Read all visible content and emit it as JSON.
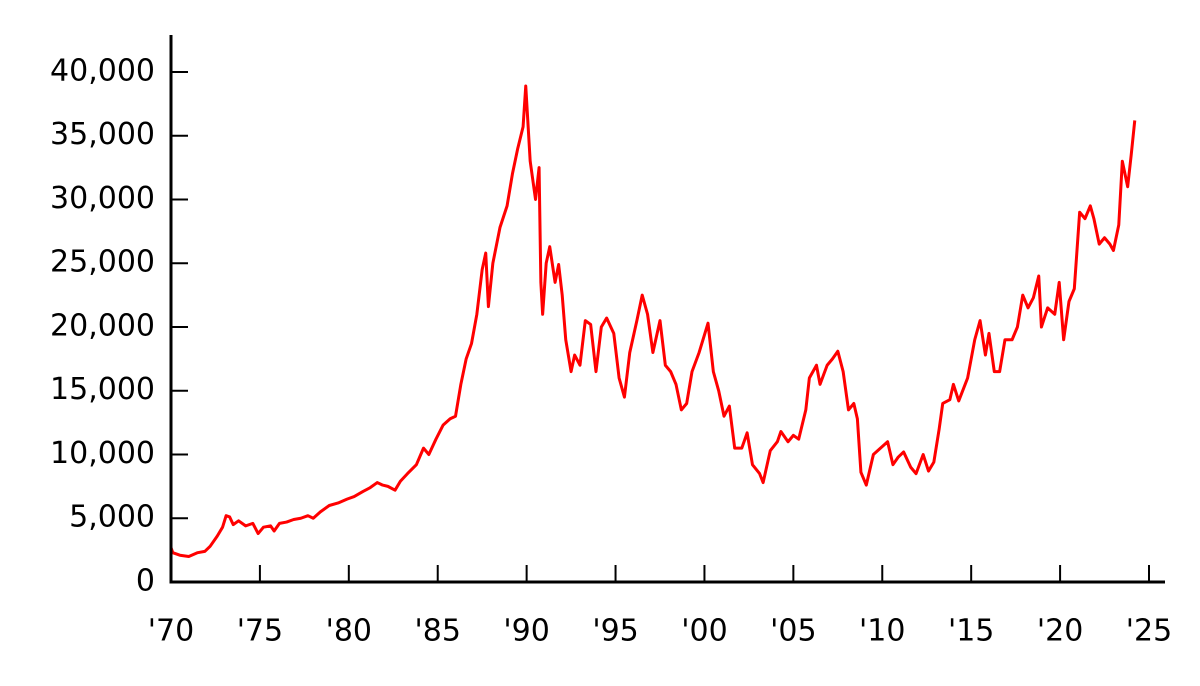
{
  "chart_data": {
    "type": "line",
    "x": [
      1970.0,
      1970.1,
      1970.5,
      1971.0,
      1971.5,
      1971.9,
      1972.2,
      1972.6,
      1972.9,
      1973.1,
      1973.3,
      1973.5,
      1973.8,
      1974.2,
      1974.6,
      1974.9,
      1975.2,
      1975.6,
      1975.8,
      1976.1,
      1976.5,
      1976.9,
      1977.3,
      1977.7,
      1978.0,
      1978.4,
      1978.9,
      1979.4,
      1979.9,
      1980.3,
      1980.8,
      1981.2,
      1981.6,
      1981.9,
      1982.2,
      1982.6,
      1982.9,
      1983.3,
      1983.8,
      1984.2,
      1984.5,
      1984.9,
      1985.3,
      1985.7,
      1986.0,
      1986.3,
      1986.6,
      1986.9,
      1987.2,
      1987.5,
      1987.7,
      1987.85,
      1988.1,
      1988.5,
      1988.9,
      1989.2,
      1989.5,
      1989.8,
      1989.95,
      1990.2,
      1990.5,
      1990.7,
      1990.8,
      1990.9,
      1991.1,
      1991.3,
      1991.6,
      1991.8,
      1992.0,
      1992.2,
      1992.5,
      1992.7,
      1993.0,
      1993.3,
      1993.6,
      1993.9,
      1994.2,
      1994.5,
      1994.9,
      1995.2,
      1995.5,
      1995.8,
      1996.2,
      1996.5,
      1996.8,
      1997.1,
      1997.5,
      1997.8,
      1998.1,
      1998.4,
      1998.7,
      1999.0,
      1999.3,
      1999.7,
      2000.2,
      2000.5,
      2000.8,
      2001.1,
      2001.4,
      2001.7,
      2002.1,
      2002.4,
      2002.7,
      2003.1,
      2003.3,
      2003.7,
      2004.1,
      2004.3,
      2004.7,
      2005.0,
      2005.3,
      2005.7,
      2005.9,
      2006.3,
      2006.5,
      2006.9,
      2007.2,
      2007.5,
      2007.8,
      2008.1,
      2008.4,
      2008.6,
      2008.8,
      2009.1,
      2009.5,
      2009.9,
      2010.3,
      2010.6,
      2010.9,
      2011.2,
      2011.6,
      2011.9,
      2012.3,
      2012.6,
      2012.9,
      2013.2,
      2013.4,
      2013.8,
      2014.0,
      2014.3,
      2014.8,
      2015.2,
      2015.5,
      2015.8,
      2016.0,
      2016.3,
      2016.6,
      2016.9,
      2017.3,
      2017.6,
      2017.9,
      2018.2,
      2018.5,
      2018.8,
      2018.95,
      2019.3,
      2019.7,
      2019.95,
      2020.2,
      2020.5,
      2020.8,
      2021.1,
      2021.4,
      2021.7,
      2021.9,
      2022.2,
      2022.5,
      2022.8,
      2023.0,
      2023.3,
      2023.5,
      2023.8,
      2024.0,
      2024.2
    ],
    "series": [
      {
        "color": "#ff0000",
        "values": [
          2700,
          2300,
          2100,
          2000,
          2300,
          2400,
          2800,
          3600,
          4300,
          5200,
          5100,
          4500,
          4800,
          4400,
          4600,
          3800,
          4300,
          4400,
          4000,
          4600,
          4700,
          4900,
          5000,
          5200,
          5000,
          5500,
          6000,
          6200,
          6500,
          6700,
          7100,
          7400,
          7800,
          7600,
          7500,
          7200,
          7900,
          8500,
          9200,
          10500,
          10000,
          11200,
          12300,
          12800,
          13000,
          15500,
          17500,
          18700,
          21000,
          24500,
          25800,
          21600,
          25000,
          27800,
          29500,
          32000,
          34000,
          35700,
          38900,
          33000,
          30000,
          32500,
          23500,
          21000,
          25000,
          26300,
          23500,
          24900,
          22500,
          19000,
          16500,
          17800,
          17000,
          20500,
          20200,
          16500,
          20000,
          20700,
          19500,
          16000,
          14500,
          18000,
          20500,
          22500,
          21000,
          18000,
          20500,
          17000,
          16500,
          15500,
          13500,
          14000,
          16500,
          18000,
          20300,
          16500,
          15000,
          13000,
          13800,
          10500,
          10500,
          11700,
          9200,
          8500,
          7800,
          10300,
          11000,
          11800,
          11000,
          11500,
          11200,
          13500,
          16000,
          17000,
          15500,
          17000,
          17500,
          18100,
          16500,
          13500,
          14000,
          12800,
          8600,
          7600,
          10000,
          10500,
          11000,
          9200,
          9800,
          10200,
          9000,
          8500,
          10000,
          8700,
          9400,
          12000,
          14000,
          14300,
          15500,
          14200,
          16000,
          19000,
          20500,
          17800,
          19500,
          16500,
          16500,
          19000,
          19000,
          20000,
          22500,
          21500,
          22300,
          24000,
          20000,
          21500,
          21000,
          23500,
          19000,
          22000,
          23000,
          29000,
          28500,
          29500,
          28500,
          26500,
          27000,
          26500,
          26000,
          28000,
          33000,
          31000,
          33500,
          36200
        ]
      }
    ],
    "xlim": [
      1970,
      2025.9
    ],
    "xticks": [
      {
        "value": 1970,
        "label": "'70"
      },
      {
        "value": 1975,
        "label": "'75"
      },
      {
        "value": 1980,
        "label": "'80"
      },
      {
        "value": 1985,
        "label": "'85"
      },
      {
        "value": 1990,
        "label": "'90"
      },
      {
        "value": 1995,
        "label": "'95"
      },
      {
        "value": 2000,
        "label": "'00"
      },
      {
        "value": 2005,
        "label": "'05"
      },
      {
        "value": 2010,
        "label": "'10"
      },
      {
        "value": 2015,
        "label": "'15"
      },
      {
        "value": 2020,
        "label": "'20"
      },
      {
        "value": 2025,
        "label": "'25"
      }
    ],
    "ylim": [
      0,
      42900
    ],
    "yticks": [
      0,
      {
        "value": 5000,
        "label": "5,000"
      },
      {
        "value": 10000,
        "label": "10,000"
      },
      {
        "value": 15000,
        "label": "15,000"
      },
      {
        "value": 20000,
        "label": "20,000"
      },
      {
        "value": 25000,
        "label": "25,000"
      },
      {
        "value": 30000,
        "label": "30,000"
      },
      {
        "value": 35000,
        "label": "35,000"
      },
      {
        "value": 40000,
        "label": "40,000"
      }
    ]
  }
}
